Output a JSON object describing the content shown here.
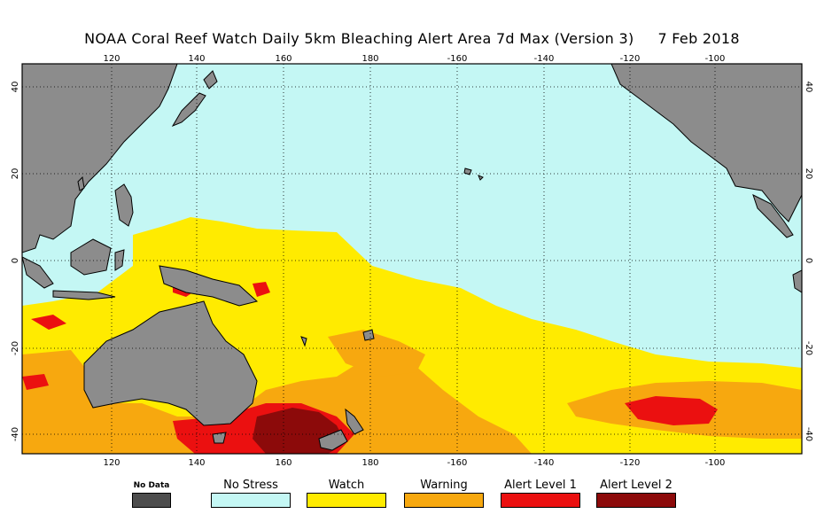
{
  "title": "NOAA Coral Reef Watch Daily 5km Bleaching Alert Area 7d Max (Version 3)     7 Feb 2018",
  "map": {
    "lon_ticks": [
      "120",
      "140",
      "160",
      "180",
      "-160",
      "-140",
      "-120",
      "-100"
    ],
    "lat_ticks": [
      "40",
      "20",
      "0",
      "-20",
      "-40"
    ],
    "colors": {
      "ocean": "#c4f7f4",
      "land": "#8c8c8c",
      "watch": "#ffeb00",
      "warning": "#f7a80f",
      "alert1": "#eb1010",
      "alert2": "#8c0a0a"
    }
  },
  "legend": [
    {
      "label": "No Data",
      "color": "#4d4d4d"
    },
    {
      "label": "No Stress",
      "color": "#c4f7f4"
    },
    {
      "label": "Watch",
      "color": "#ffeb00"
    },
    {
      "label": "Warning",
      "color": "#f7a80f"
    },
    {
      "label": "Alert Level 1",
      "color": "#eb1010"
    },
    {
      "label": "Alert Level 2",
      "color": "#8c0a0a"
    }
  ]
}
